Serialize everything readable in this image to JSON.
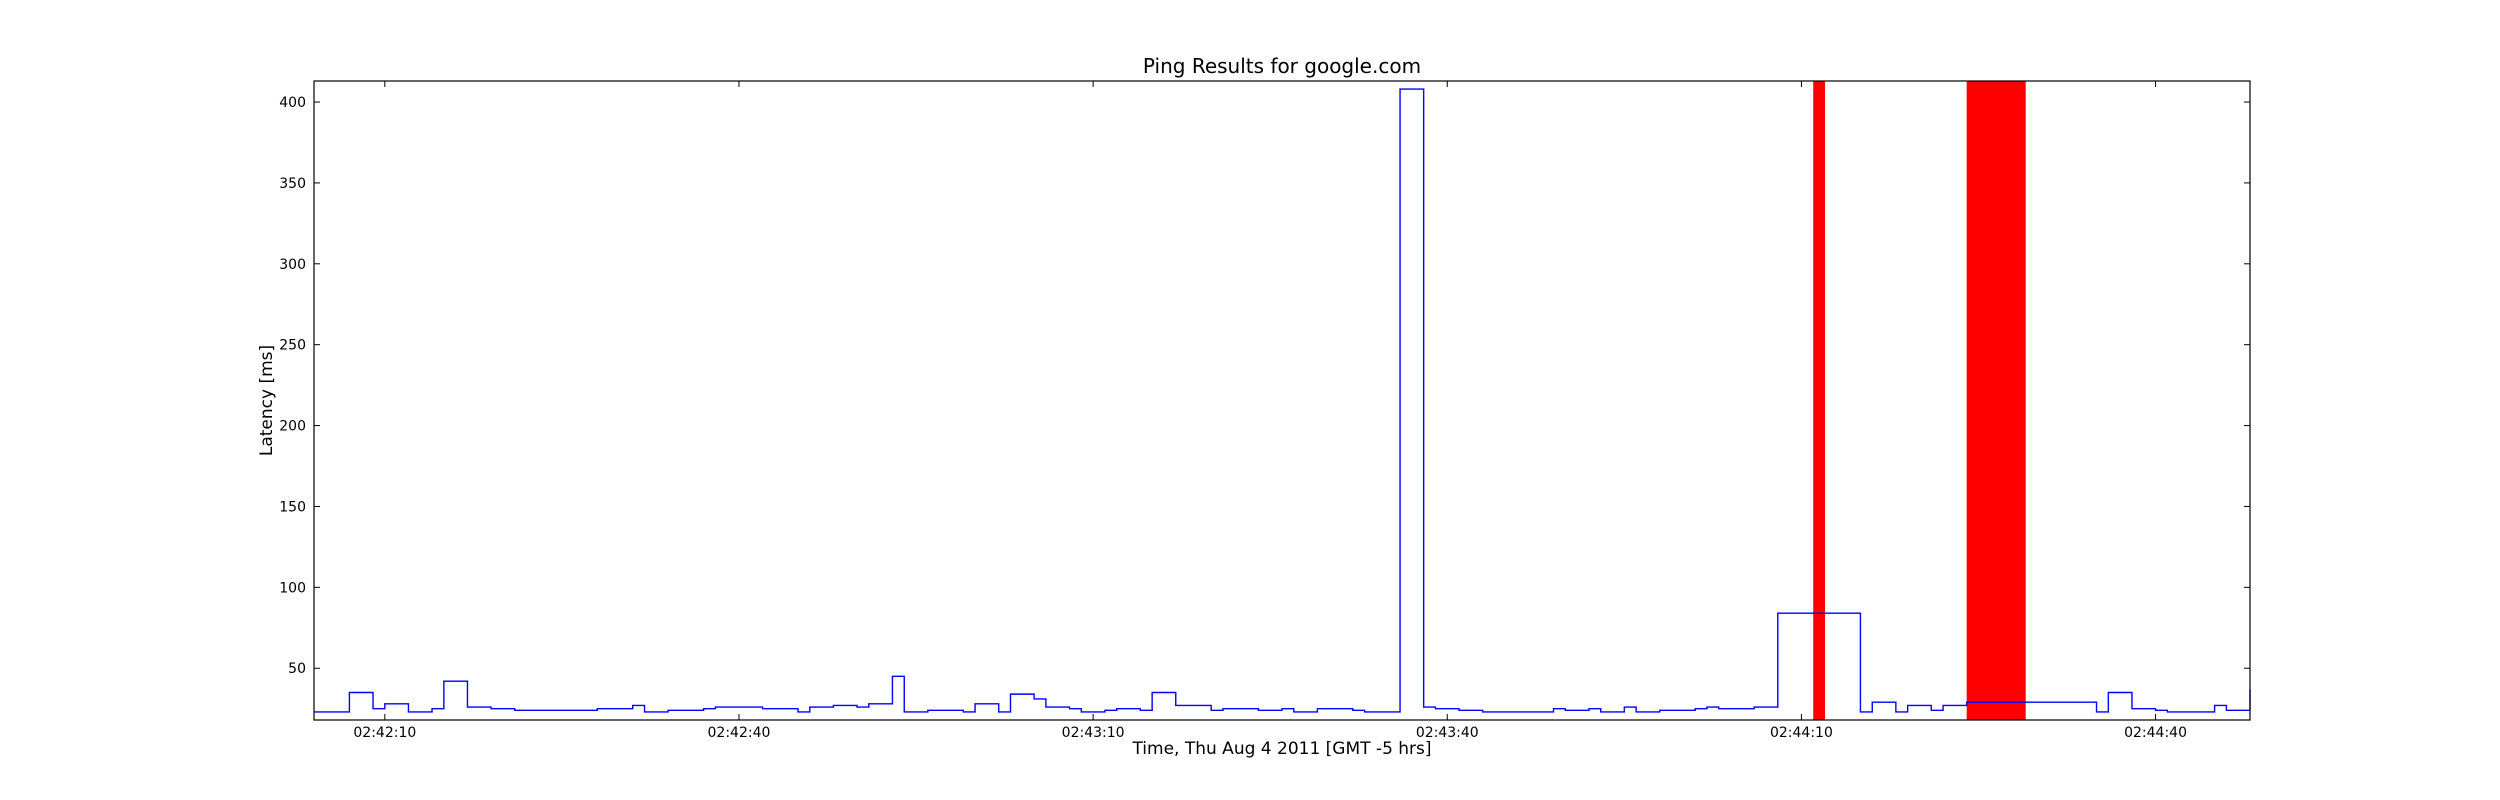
{
  "chart_data": {
    "type": "line",
    "title": "Ping Results for google.com",
    "xlabel": "Time, Thu Aug 4 2011 [GMT -5 hrs]",
    "ylabel": "Latency [ms]",
    "xlim": [
      "02:42:04",
      "02:44:48"
    ],
    "ylim": [
      18,
      413
    ],
    "x_ticks": [
      "02:42:10",
      "02:42:40",
      "02:43:10",
      "02:43:40",
      "02:44:10",
      "02:44:40"
    ],
    "y_ticks": [
      50,
      100,
      150,
      200,
      250,
      300,
      350,
      400
    ],
    "grid": false,
    "line_style": "steps",
    "series": [
      {
        "color": "#0000ff",
        "points": [
          [
            "02:42:04",
            23
          ],
          [
            "02:42:07",
            35
          ],
          [
            "02:42:09",
            25
          ],
          [
            "02:42:10",
            28
          ],
          [
            "02:42:12",
            23
          ],
          [
            "02:42:14",
            25
          ],
          [
            "02:42:15",
            42
          ],
          [
            "02:42:17",
            26
          ],
          [
            "02:42:19",
            25
          ],
          [
            "02:42:21",
            24
          ],
          [
            "02:42:28",
            25
          ],
          [
            "02:42:31",
            27
          ],
          [
            "02:42:32",
            23
          ],
          [
            "02:42:34",
            24
          ],
          [
            "02:42:37",
            25
          ],
          [
            "02:42:38",
            26
          ],
          [
            "02:42:42",
            25
          ],
          [
            "02:42:45",
            23
          ],
          [
            "02:42:46",
            26
          ],
          [
            "02:42:48",
            27
          ],
          [
            "02:42:50",
            26
          ],
          [
            "02:42:51",
            28
          ],
          [
            "02:42:53",
            45
          ],
          [
            "02:42:54",
            23
          ],
          [
            "02:42:56",
            24
          ],
          [
            "02:42:59",
            23
          ],
          [
            "02:43:00",
            28
          ],
          [
            "02:43:02",
            23
          ],
          [
            "02:43:03",
            34
          ],
          [
            "02:43:05",
            31
          ],
          [
            "02:43:06",
            26
          ],
          [
            "02:43:08",
            25
          ],
          [
            "02:43:09",
            23
          ],
          [
            "02:43:11",
            24
          ],
          [
            "02:43:12",
            25
          ],
          [
            "02:43:14",
            24
          ],
          [
            "02:43:15",
            35
          ],
          [
            "02:43:17",
            27
          ],
          [
            "02:43:20",
            24
          ],
          [
            "02:43:21",
            25
          ],
          [
            "02:43:24",
            24
          ],
          [
            "02:43:26",
            25
          ],
          [
            "02:43:27",
            23
          ],
          [
            "02:43:29",
            25
          ],
          [
            "02:43:32",
            24
          ],
          [
            "02:43:33",
            23
          ],
          [
            "02:43:36",
            408
          ],
          [
            "02:43:38",
            26
          ],
          [
            "02:43:39",
            25
          ],
          [
            "02:43:41",
            24
          ],
          [
            "02:43:43",
            23
          ],
          [
            "02:43:49",
            25
          ],
          [
            "02:43:50",
            24
          ],
          [
            "02:43:52",
            25
          ],
          [
            "02:43:53",
            23
          ],
          [
            "02:43:55",
            26
          ],
          [
            "02:43:56",
            23
          ],
          [
            "02:43:58",
            24
          ],
          [
            "02:44:01",
            25
          ],
          [
            "02:44:02",
            26
          ],
          [
            "02:44:03",
            25
          ],
          [
            "02:44:06",
            26
          ],
          [
            "02:44:08",
            84
          ],
          [
            "02:44:15",
            23
          ],
          [
            "02:44:16",
            29
          ],
          [
            "02:44:18",
            23
          ],
          [
            "02:44:19",
            27
          ],
          [
            "02:44:21",
            24
          ],
          [
            "02:44:22",
            27
          ],
          [
            "02:44:24",
            29
          ],
          [
            "02:44:35",
            23
          ],
          [
            "02:44:36",
            35
          ],
          [
            "02:44:38",
            25
          ],
          [
            "02:44:40",
            24
          ],
          [
            "02:44:41",
            23
          ],
          [
            "02:44:45",
            27
          ],
          [
            "02:44:46",
            24
          ],
          [
            "02:44:48",
            37
          ]
        ]
      }
    ],
    "outages": [
      {
        "start": "02:44:11",
        "end": "02:44:12",
        "color": "#ff0000"
      },
      {
        "start": "02:44:24",
        "end": "02:44:29",
        "color": "#ff0000"
      }
    ]
  }
}
